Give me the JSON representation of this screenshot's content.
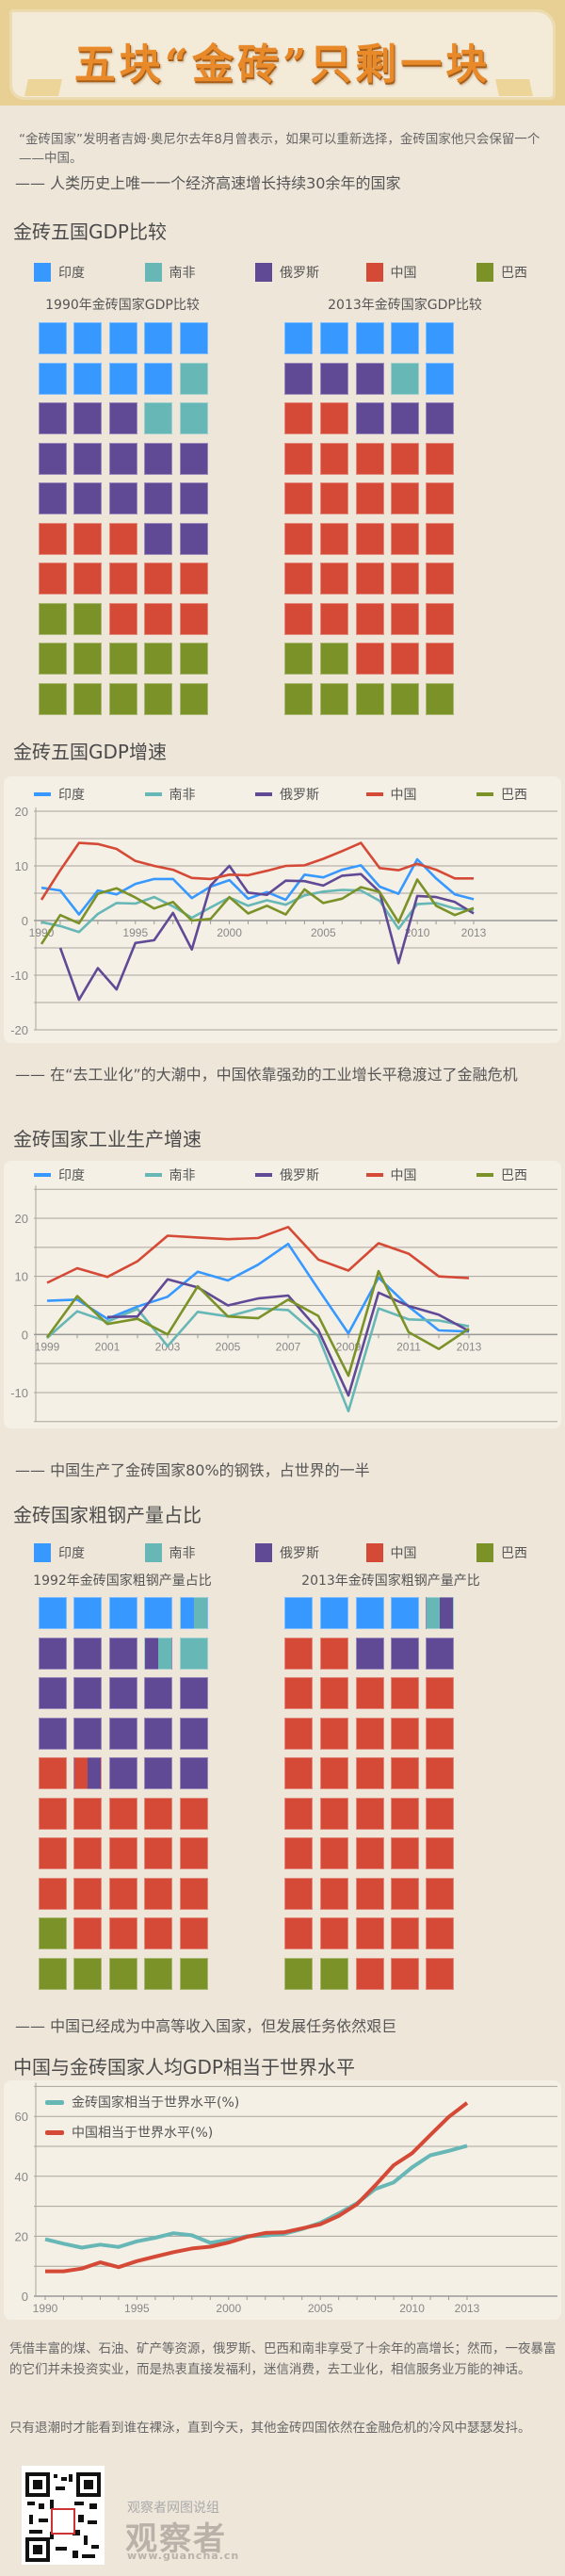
{
  "header": {
    "title": "五块“金砖”只剩一块"
  },
  "intro": {
    "text": "“金砖国家”发明者吉姆·奥尼尔去年8月曾表示，如果可以重新选择，金砖国家他只会保留一个——中国。"
  },
  "colors": {
    "india": "#3799ff",
    "south_africa": "#67b7b6",
    "russia": "#604a96",
    "china": "#d54a37",
    "brazil": "#7a9227"
  },
  "legend": [
    "印度",
    "南非",
    "俄罗斯",
    "中国",
    "巴西"
  ],
  "section1": {
    "subhead": "—— 人类历史上唯一一个经济高速增长持续30余年的国家",
    "title": "金砖五国GDP比较",
    "left_title": "1990年金砖国家GDP比较",
    "right_title": "2013年金砖国家GDP比较"
  },
  "section2": {
    "title": "金砖五国GDP增速"
  },
  "section3": {
    "subhead": "—— 在“去工业化”的大潮中，中国依靠强劲的工业增长平稳渡过了金融危机",
    "title": "金砖国家工业生产增速"
  },
  "section4": {
    "subhead": "—— 中国生产了金砖国家80%的钢铁，占世界的一半",
    "title": "金砖国家粗钢产量占比",
    "left_title": "1992年金砖国家粗钢产量占比",
    "right_title": "2013年金砖国家粗钢产量产比"
  },
  "section5": {
    "subhead": "—— 中国已经成为中高等收入国家，但发展任务依然艰巨",
    "title": "中国与金砖国家人均GDP相当于世界水平"
  },
  "closing": {
    "p1": "凭借丰富的煤、石油、矿产等资源，俄罗斯、巴西和南非享受了十余年的高增长；然而，一夜暴富的它们并未投资实业，而是热衷直接发福利，迷信消费，去工业化，相信服务业万能的神话。",
    "p2": "只有退潮时才能看到谁在裸泳，直到今天，其他金砖四国依然在金融危机的冷风中瑟瑟发抖。"
  },
  "footer": {
    "group": "观察者网图说组",
    "brand": "观察者",
    "url": "www.guancha.cn"
  },
  "chart_data": [
    {
      "type": "waffle",
      "title": "1990年金砖国家GDP比较",
      "grid": "5x10",
      "legend": [
        "印度",
        "南非",
        "俄罗斯",
        "中国",
        "巴西"
      ],
      "cells": [
        "IN",
        "IN",
        "IN",
        "IN",
        "IN",
        "IN",
        "IN",
        "IN",
        "IN",
        "SA",
        "RU",
        "RU",
        "RU",
        "SA",
        "SA",
        "RU",
        "RU",
        "RU",
        "RU",
        "RU",
        "RU",
        "RU",
        "RU",
        "RU",
        "RU",
        "CN",
        "CN",
        "CN",
        "RU",
        "RU",
        "CN",
        "CN",
        "CN",
        "CN",
        "CN",
        "BR",
        "BR",
        "CN",
        "CN",
        "CN",
        "BR",
        "BR",
        "BR",
        "BR",
        "BR",
        "BR",
        "BR",
        "BR",
        "BR",
        "BR"
      ],
      "approx_share_pct": {
        "印度": 18,
        "南非": 6,
        "俄罗斯": 26,
        "中国": 20,
        "巴西": 24
      }
    },
    {
      "type": "waffle",
      "title": "2013年金砖国家GDP比较",
      "grid": "5x10",
      "legend": [
        "印度",
        "南非",
        "俄罗斯",
        "中国",
        "巴西"
      ],
      "cells": [
        "IN",
        "IN",
        "IN",
        "IN",
        "IN",
        "RU",
        "RU",
        "RU",
        "SA",
        "IN",
        "CN",
        "CN",
        "RU",
        "RU",
        "RU",
        "CN",
        "CN",
        "CN",
        "CN",
        "CN",
        "CN",
        "CN",
        "CN",
        "CN",
        "CN",
        "CN",
        "CN",
        "CN",
        "CN",
        "CN",
        "CN",
        "CN",
        "CN",
        "CN",
        "CN",
        "CN",
        "CN",
        "CN",
        "CN",
        "CN",
        "BR",
        "BR",
        "CN",
        "CN",
        "CN",
        "BR",
        "BR",
        "BR",
        "BR",
        "BR"
      ],
      "approx_share_pct": {
        "印度": 12,
        "南非": 2,
        "俄罗斯": 12,
        "中国": 60,
        "巴西": 14
      }
    },
    {
      "type": "line",
      "title": "金砖五国GDP增速",
      "x": [
        1990,
        1991,
        1992,
        1993,
        1994,
        1995,
        1996,
        1997,
        1998,
        1999,
        2000,
        2001,
        2002,
        2003,
        2004,
        2005,
        2006,
        2007,
        2008,
        2009,
        2010,
        2011,
        2012,
        2013
      ],
      "xticks": [
        "1990",
        "1995",
        "2000",
        "2005",
        "2010",
        "2013"
      ],
      "ylim": [
        -20,
        20
      ],
      "yticks": [
        20,
        10,
        0,
        -10,
        -20
      ],
      "grid": true,
      "legend_position": "top",
      "series": [
        {
          "name": "印度",
          "values": [
            6.0,
            5.5,
            1.1,
            5.5,
            4.8,
            6.7,
            7.6,
            7.6,
            4.1,
            6.2,
            7.4,
            4.0,
            5.2,
            3.8,
            8.4,
            7.9,
            9.3,
            10.1,
            6.2,
            4.9,
            11.2,
            7.7,
            4.8,
            3.9
          ]
        },
        {
          "name": "南非",
          "values": [
            -0.3,
            -1.0,
            -2.1,
            1.2,
            3.2,
            3.1,
            4.3,
            2.6,
            0.5,
            2.4,
            4.2,
            2.7,
            3.7,
            2.9,
            4.6,
            5.3,
            5.6,
            5.5,
            3.6,
            -1.5,
            3.0,
            3.2,
            2.2,
            1.9
          ]
        },
        {
          "name": "俄罗斯",
          "values": [
            null,
            -5.0,
            -14.5,
            -8.7,
            -12.6,
            -4.1,
            -3.6,
            1.4,
            -5.3,
            6.4,
            10.0,
            5.1,
            4.7,
            7.3,
            7.2,
            6.4,
            8.2,
            8.5,
            5.2,
            -7.8,
            4.5,
            4.3,
            3.4,
            1.3
          ]
        },
        {
          "name": "中国",
          "values": [
            3.8,
            9.2,
            14.2,
            14.0,
            13.1,
            10.9,
            10.0,
            9.3,
            7.8,
            7.6,
            8.4,
            8.3,
            9.1,
            10.0,
            10.1,
            11.3,
            12.7,
            14.2,
            9.6,
            9.2,
            10.4,
            9.3,
            7.7,
            7.7
          ]
        },
        {
          "name": "巴西",
          "values": [
            -4.3,
            1.0,
            -0.5,
            4.9,
            5.9,
            4.2,
            2.2,
            3.4,
            0.0,
            0.3,
            4.3,
            1.3,
            2.7,
            1.1,
            5.7,
            3.2,
            4.0,
            6.1,
            5.2,
            -0.3,
            7.5,
            2.7,
            1.0,
            2.3
          ]
        }
      ]
    },
    {
      "type": "line",
      "title": "金砖国家工业生产增速",
      "x": [
        1999,
        2000,
        2001,
        2002,
        2003,
        2004,
        2005,
        2006,
        2007,
        2008,
        2009,
        2010,
        2011,
        2012,
        2013
      ],
      "xticks": [
        "1999",
        "2001",
        "2003",
        "2005",
        "2007",
        "2009",
        "2011",
        "2013"
      ],
      "ylim": [
        -15,
        25
      ],
      "yticks": [
        20,
        10,
        0,
        -10
      ],
      "grid": true,
      "legend_position": "top",
      "series": [
        {
          "name": "印度",
          "values": [
            5.8,
            6.0,
            2.7,
            4.8,
            6.5,
            10.8,
            9.3,
            12.0,
            15.6,
            7.8,
            0.2,
            9.8,
            4.8,
            0.7,
            0.5
          ]
        },
        {
          "name": "南非",
          "values": [
            -0.6,
            4.0,
            2.2,
            4.4,
            -2.0,
            3.9,
            3.1,
            4.5,
            4.2,
            -0.3,
            -13.2,
            4.5,
            2.6,
            2.4,
            1.4
          ]
        },
        {
          "name": "俄罗斯",
          "values": [
            null,
            null,
            3.0,
            3.1,
            9.5,
            8.1,
            5.0,
            6.2,
            6.7,
            0.8,
            -10.5,
            7.2,
            4.9,
            3.4,
            0.6
          ]
        },
        {
          "name": "中国",
          "values": [
            8.9,
            11.4,
            9.9,
            12.6,
            17.0,
            16.7,
            16.4,
            16.6,
            18.5,
            12.9,
            11.0,
            15.7,
            13.9,
            10.0,
            9.7
          ]
        },
        {
          "name": "巴西",
          "values": [
            -0.5,
            6.6,
            1.8,
            2.7,
            0.0,
            8.3,
            3.1,
            2.8,
            6.0,
            3.2,
            -7.1,
            10.9,
            0.4,
            -2.5,
            1.0
          ]
        }
      ]
    },
    {
      "type": "waffle",
      "title": "1992年金砖国家粗钢产量占比",
      "grid": "5x10",
      "legend": [
        "印度",
        "南非",
        "俄罗斯",
        "中国",
        "巴西"
      ],
      "cells": [
        "IN",
        "IN",
        "IN",
        "IN",
        "IN/SA",
        "RU",
        "RU",
        "RU",
        "RU/SA",
        "SA",
        "RU",
        "RU",
        "RU",
        "RU",
        "RU",
        "RU",
        "RU",
        "RU",
        "RU",
        "RU",
        "CN",
        "CN/RU",
        "RU",
        "RU",
        "RU",
        "CN",
        "CN",
        "CN",
        "CN",
        "CN",
        "CN",
        "CN",
        "CN",
        "CN",
        "CN",
        "CN",
        "CN",
        "CN",
        "CN",
        "CN",
        "BR",
        "CN",
        "CN",
        "CN",
        "CN",
        "BR",
        "BR",
        "BR",
        "BR",
        "BR"
      ],
      "approx_share_pct": {
        "印度": 9,
        "南非": 3,
        "俄罗斯": 32,
        "中国": 42,
        "巴西": 14
      }
    },
    {
      "type": "waffle",
      "title": "2013年金砖国家粗钢产量产比",
      "grid": "5x10",
      "legend": [
        "印度",
        "南非",
        "俄罗斯",
        "中国",
        "巴西"
      ],
      "cells": [
        "IN",
        "IN",
        "IN",
        "IN",
        "SA/RU",
        "CN",
        "CN",
        "RU",
        "RU",
        "RU",
        "CN",
        "CN",
        "CN",
        "CN",
        "CN",
        "CN",
        "CN",
        "CN",
        "CN",
        "CN",
        "CN",
        "CN",
        "CN",
        "CN",
        "CN",
        "CN",
        "CN",
        "CN",
        "CN",
        "CN",
        "CN",
        "CN",
        "CN",
        "CN",
        "CN",
        "CN",
        "CN",
        "CN",
        "CN",
        "CN",
        "CN",
        "CN",
        "CN",
        "CN",
        "CN",
        "BR",
        "BR",
        "CN",
        "CN",
        "CN"
      ],
      "approx_share_pct": {
        "印度": 8,
        "南非": 1,
        "俄罗斯": 7,
        "中国": 80,
        "巴西": 4
      }
    },
    {
      "type": "line",
      "title": "中国与金砖国家人均GDP相当于世界水平",
      "x": [
        1990,
        1991,
        1992,
        1993,
        1994,
        1995,
        1996,
        1997,
        1998,
        1999,
        2000,
        2001,
        2002,
        2003,
        2004,
        2005,
        2006,
        2007,
        2008,
        2009,
        2010,
        2011,
        2012,
        2013
      ],
      "xticks": [
        "1990",
        "1995",
        "2000",
        "2005",
        "2010",
        "2013"
      ],
      "ylim": [
        0,
        70
      ],
      "yticks": [
        0,
        20,
        40,
        60
      ],
      "grid": true,
      "legend_position": "top-left",
      "series": [
        {
          "name": "金砖国家相当于世界水平(%)",
          "values": [
            19.0,
            17.5,
            16.2,
            17.2,
            16.4,
            18.3,
            19.5,
            21.0,
            20.3,
            17.8,
            18.8,
            20.0,
            20.2,
            20.8,
            22.4,
            24.5,
            27.6,
            31.0,
            35.8,
            38.0,
            43.0,
            47.0,
            48.5,
            50.2
          ]
        },
        {
          "name": "中国相当于世界水平(%)",
          "values": [
            8.3,
            8.3,
            9.2,
            11.3,
            9.7,
            11.7,
            13.2,
            14.7,
            15.9,
            16.5,
            17.9,
            19.8,
            21.1,
            21.3,
            22.6,
            24.0,
            26.8,
            30.7,
            37.0,
            43.7,
            47.7,
            53.8,
            59.8,
            64.5
          ]
        }
      ]
    }
  ]
}
